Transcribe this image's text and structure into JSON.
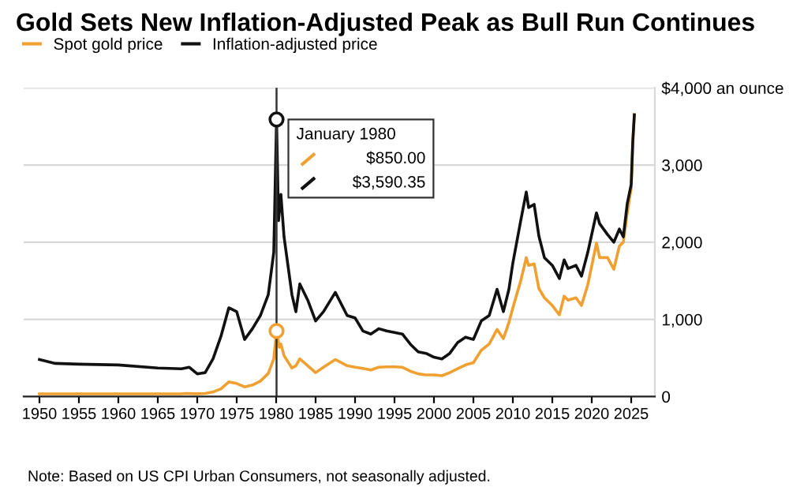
{
  "chart_data": {
    "type": "line",
    "title": "Gold Sets New Inflation-Adjusted Peak as Bull Run Continues",
    "annotations": [
      "$850.00",
      "$3,590.35",
      "Note: Based on US CPI Urban Consumers, not seasonally adjusted."
    ],
    "ref_lines": [
      {
        "axis": "x",
        "value": 1980.05,
        "label": "January 1980",
        "color": "#333333"
      }
    ],
    "series": [
      {
        "name": "Spot gold price",
        "color": "#f0a030",
        "x": [
          1950,
          1955,
          1960,
          1965,
          1968,
          1968.5,
          1970,
          1971,
          1972,
          1973,
          1974,
          1975,
          1976,
          1977,
          1978,
          1979,
          1979.7,
          1980.05,
          1980.4,
          1980.6,
          1981,
          1982,
          1982.5,
          1983,
          1984,
          1985,
          1986,
          1987.5,
          1989,
          1990,
          1991,
          1992,
          1993,
          1994,
          1995,
          1996,
          1997,
          1998,
          1999,
          2000,
          2001,
          2002,
          2003,
          2004,
          2005,
          2006,
          2007,
          2008,
          2008.8,
          2009.5,
          2010,
          2011,
          2011.7,
          2012,
          2012.7,
          2013.3,
          2014,
          2015,
          2015.9,
          2016.5,
          2017,
          2018,
          2018.7,
          2019.5,
          2020.6,
          2021,
          2022,
          2022.8,
          2023.5,
          2024,
          2024.5,
          2025,
          2025.2,
          2025.4
        ],
        "values": [
          35,
          35,
          35,
          35,
          35,
          40,
          36,
          41,
          60,
          100,
          190,
          170,
          125,
          150,
          200,
          300,
          490,
          850,
          640,
          680,
          530,
          370,
          400,
          490,
          400,
          310,
          380,
          480,
          400,
          380,
          365,
          345,
          380,
          385,
          385,
          380,
          330,
          295,
          280,
          280,
          270,
          310,
          360,
          410,
          440,
          600,
          680,
          870,
          750,
          960,
          1150,
          1500,
          1800,
          1700,
          1720,
          1400,
          1280,
          1180,
          1060,
          1300,
          1250,
          1280,
          1180,
          1450,
          1990,
          1800,
          1800,
          1650,
          1950,
          2000,
          2380,
          2700,
          3300,
          3650
        ]
      },
      {
        "name": "Inflation-adjusted price",
        "color": "#111111",
        "x": [
          1950,
          1952,
          1955,
          1960,
          1965,
          1968,
          1969,
          1970,
          1971,
          1972,
          1973,
          1974,
          1975,
          1976,
          1977,
          1978,
          1979,
          1979.7,
          1980.05,
          1980.3,
          1980.6,
          1981,
          1982,
          1982.5,
          1983,
          1984,
          1985,
          1986,
          1987.5,
          1988,
          1989,
          1990,
          1991,
          1992,
          1993,
          1994,
          1995,
          1996,
          1997,
          1998,
          1999,
          2000,
          2001,
          2002,
          2003,
          2004,
          2005,
          2006,
          2007,
          2008,
          2008.8,
          2009.5,
          2010,
          2011,
          2011.7,
          2012,
          2012.7,
          2013.3,
          2014,
          2015,
          2015.9,
          2016.5,
          2017,
          2018,
          2018.7,
          2019.5,
          2020.6,
          2021,
          2022,
          2022.8,
          2023.5,
          2024,
          2024.5,
          2025,
          2025.2,
          2025.4
        ],
        "values": [
          480,
          430,
          420,
          410,
          370,
          360,
          380,
          295,
          310,
          490,
          780,
          1150,
          1100,
          740,
          880,
          1050,
          1320,
          1870,
          3590.35,
          2280,
          2620,
          2070,
          1320,
          1100,
          1460,
          1250,
          980,
          1100,
          1350,
          1250,
          1050,
          1020,
          850,
          810,
          880,
          850,
          830,
          810,
          680,
          580,
          560,
          510,
          488,
          560,
          700,
          770,
          740,
          980,
          1050,
          1390,
          1100,
          1390,
          1730,
          2280,
          2650,
          2450,
          2490,
          2080,
          1800,
          1700,
          1530,
          1770,
          1660,
          1700,
          1560,
          1870,
          2380,
          2240,
          2100,
          2000,
          2170,
          2070,
          2500,
          2750,
          3300,
          3650
        ]
      }
    ],
    "xlim": [
      1948,
      2028
    ],
    "xticks": [
      1950,
      1955,
      1960,
      1965,
      1970,
      1975,
      1980,
      1985,
      1990,
      1995,
      2000,
      2005,
      2010,
      2015,
      2020,
      2025
    ],
    "ylim": [
      0,
      4000
    ],
    "yticks": [
      0,
      {
        "value": 1000,
        "label": "1,000"
      },
      {
        "value": 2000,
        "label": "2,000"
      },
      {
        "value": 3000,
        "label": "3,000"
      },
      {
        "value": 4000,
        "label": "$4,000 an ounce"
      }
    ],
    "grid": "y",
    "legend": "top left",
    "marker": "none",
    "line_style": "solid"
  }
}
